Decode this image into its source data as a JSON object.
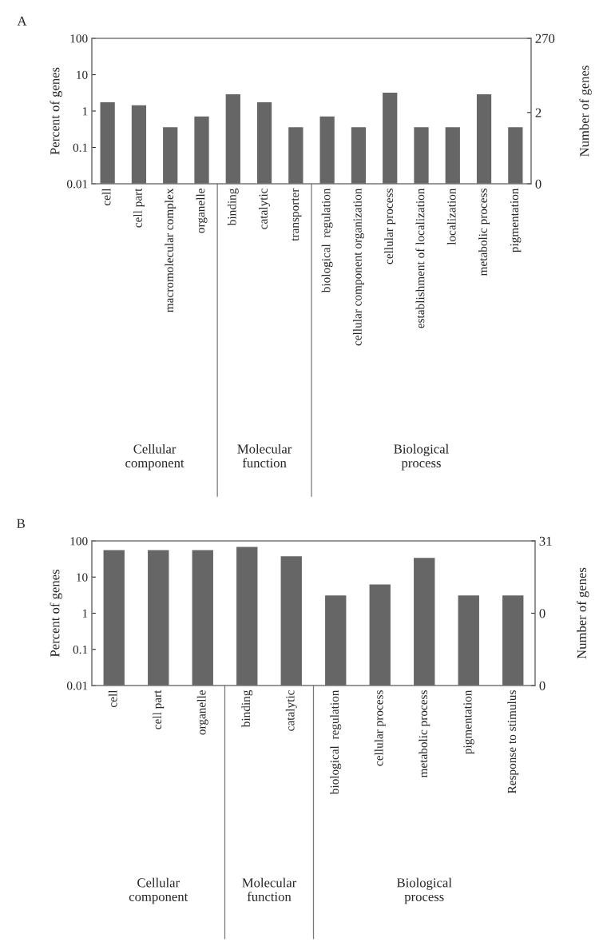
{
  "chart_data": [
    {
      "type": "bar",
      "title": "A",
      "ylabel": "Percent of genes",
      "y2label": "Number of genes",
      "log": "y",
      "categories": [
        "cell",
        "cell part",
        "macromolecular complex",
        "organelle",
        "binding",
        "catalytic",
        "transporter",
        "biological  regulation",
        "cellular component organization",
        "cellular process",
        "establishment of localization",
        "localization",
        "metabolic process",
        "pigmentation"
      ],
      "values": [
        1.8,
        1.5,
        0.37,
        0.74,
        3.0,
        1.8,
        0.37,
        0.74,
        0.37,
        3.3,
        0.37,
        0.37,
        3.0,
        0.37
      ],
      "color": "#666666",
      "ylim": [
        0.01,
        100
      ],
      "yticks": [
        0.01,
        0.1,
        1,
        10,
        100
      ],
      "annotations": [
        "Cellular\ncomponent",
        "Molecular\nfunction",
        "Biological\nprocess",
        "270",
        "2",
        "0"
      ],
      "grid": false,
      "legend": false
    },
    {
      "type": "bar",
      "title": "B",
      "ylabel": "Percent of genes",
      "y2label": "Number of genes",
      "log": "y",
      "categories": [
        "cell",
        "cell part",
        "organelle",
        "binding",
        "catalytic",
        "biological  regulation",
        "cellular process",
        "metabolic process",
        "pigmentation",
        "Response to stimulus"
      ],
      "values": [
        58,
        58,
        58,
        71,
        39,
        3.2,
        6.5,
        35,
        3.2,
        3.2
      ],
      "color": "#666666",
      "ylim": [
        0.01,
        100
      ],
      "yticks": [
        0.01,
        0.1,
        1,
        10,
        100
      ],
      "annotations": [
        "Cellular\ncomponent",
        "Molecular\nfunction",
        "Biological\nprocess",
        "31",
        "0",
        "0"
      ],
      "grid": false,
      "legend": false
    }
  ]
}
